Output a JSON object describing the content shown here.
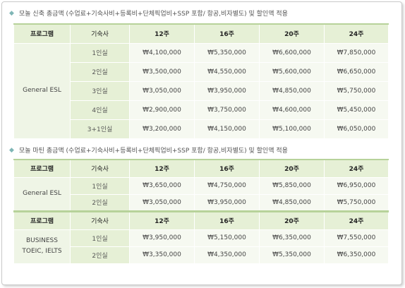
{
  "sections": [
    {
      "heading": "모놀 신축 총금액 (수업료+기숙사비+등록비+단체픽업비+SSP 포함/ 항공,비자별도) 및 할인액 적용",
      "header": [
        "프로그램",
        "기숙사",
        "12주",
        "16주",
        "20주",
        "24주"
      ],
      "groups": [
        {
          "program": "General ESL",
          "rows": [
            {
              "room": "1인실",
              "prices": [
                "₩4,100,000",
                "₩5,350,000",
                "₩6,600,000",
                "₩7,850,000"
              ]
            },
            {
              "room": "2인실",
              "prices": [
                "₩3,500,000",
                "₩4,550,000",
                "₩5,600,000",
                "₩6,650,000"
              ]
            },
            {
              "room": "3인실",
              "prices": [
                "₩3,050,000",
                "₩3,950,000",
                "₩4,850,000",
                "₩5,750,000"
              ]
            },
            {
              "room": "4인실",
              "prices": [
                "₩2,900,000",
                "₩3,750,000",
                "₩4,600,000",
                "₩5,450,000"
              ]
            },
            {
              "room": "3+1인실",
              "prices": [
                "₩3,200,000",
                "₩4,150,000",
                "₩5,100,000",
                "₩6,050,000"
              ]
            }
          ]
        }
      ]
    },
    {
      "heading": "모놀 마틴 총금액 (수업료+기숙사비+등록비+단체픽업비+SSP 포함/ 항공,비자별도) 및 할인액 적용",
      "header": [
        "프로그램",
        "기숙사",
        "12주",
        "16주",
        "20주",
        "24주"
      ],
      "groups": [
        {
          "program": "General ESL",
          "rows": [
            {
              "room": "1인실",
              "prices": [
                "₩3,650,000",
                "₩4,750,000",
                "₩5,850,000",
                "₩6,950,000"
              ]
            },
            {
              "room": "2인실",
              "prices": [
                "₩3,050,000",
                "₩3,950,000",
                "₩4,850,000",
                "₩5,750,000"
              ]
            }
          ]
        }
      ],
      "header2": [
        "프로그램",
        "기숙사",
        "12주",
        "16주",
        "20주",
        "24주"
      ],
      "groups2": [
        {
          "program": "BUSINESS TOEIC, IELTS",
          "rows": [
            {
              "room": "1인실",
              "prices": [
                "₩3,950,000",
                "₩5,150,000",
                "₩6,350,000",
                "₩7,550,000"
              ]
            },
            {
              "room": "2인실",
              "prices": [
                "₩3,350,000",
                "₩4,350,000",
                "₩5,350,000",
                "₩6,350,000"
              ]
            }
          ]
        }
      ]
    }
  ],
  "colors": {
    "header_bg": "#e6f0d6",
    "price_bg": "#f6f9f1",
    "accent_line": "#b7d29a",
    "bullet": "#7fb6b6"
  },
  "icons": {
    "bullet": "diamond-bullet-icon"
  }
}
